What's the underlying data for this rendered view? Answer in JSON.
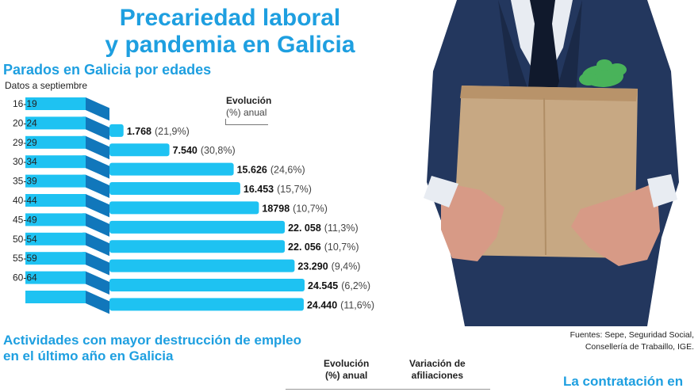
{
  "header": {
    "title_line1": "Precariedad laboral",
    "title_line2": "y pandemia en Galicia"
  },
  "legend": {
    "line1": "Evolución",
    "line2": "(%) anual"
  },
  "chart_data": {
    "type": "bar",
    "orientation": "horizontal",
    "title": "Parados en Galicia por edades",
    "subtitle": "Datos a septiembre",
    "categories": [
      "16-19",
      "20-24",
      "29-29",
      "30-34",
      "35-39",
      "40-44",
      "45-49",
      "50-54",
      "55-59",
      "60-64",
      ""
    ],
    "values": [
      null,
      1768,
      7540,
      15626,
      16453,
      18798,
      22058,
      22056,
      23290,
      24545,
      24440
    ],
    "value_labels": [
      "",
      "1.768",
      "7.540",
      "15.626",
      "16.453",
      "18798",
      "22. 058",
      "22. 056",
      "23.290",
      "24.545",
      "24.440"
    ],
    "pct_labels": [
      "",
      "(21,9%)",
      "(30,8%)",
      "(24,6%)",
      "(15,7%)",
      "(10,7%)",
      "(11,3%)",
      "(10,7%)",
      "(9,4%)",
      "(6,2%)",
      "(11,6%)"
    ],
    "xlim": [
      0,
      25000
    ],
    "grid": false,
    "colors": {
      "bar": "#1ec2f2",
      "bar_shadow": "#1177bb"
    }
  },
  "photo": {
    "colors": {
      "suit": "#23375e",
      "box": "#c7a883",
      "shirt": "#e8ecf2",
      "plant": "#49b35a",
      "skin": "#d79a86"
    }
  },
  "sources": {
    "line1": "Fuentes: Sepe, Seguridad Social,",
    "line2": "Consellería de Trabaillo, IGE."
  },
  "section2": {
    "title_line1": "Actividades con mayor destrucción de empleo",
    "title_line2": "en el último año en Galicia",
    "col1_line1": "Evolución",
    "col1_line2": "(%) anual",
    "col2_line1": "Variación de",
    "col2_line2": "afiliaciones"
  },
  "section3": {
    "title": "La contratación en"
  }
}
